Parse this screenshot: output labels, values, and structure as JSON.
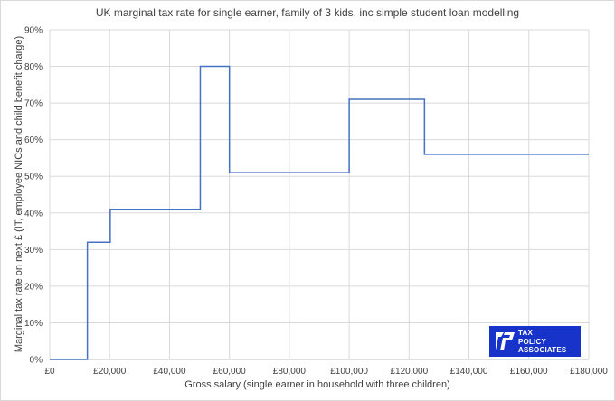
{
  "chart_data": {
    "type": "line",
    "title": "UK marginal tax rate for single earner, family of 3 kids, inc simple student loan modelling",
    "xlabel": "Gross salary (single earner in household with three children)",
    "ylabel": "Marginal tax rate on next £ (IT, employee NICs and child benefit charge)",
    "xlim": [
      0,
      180000
    ],
    "ylim": [
      0,
      90
    ],
    "x_ticks": [
      0,
      20000,
      40000,
      60000,
      80000,
      100000,
      120000,
      140000,
      160000,
      180000
    ],
    "x_tick_labels": [
      "£0",
      "£20,000",
      "£40,000",
      "£60,000",
      "£80,000",
      "£100,000",
      "£120,000",
      "£140,000",
      "£160,000",
      "£180,000"
    ],
    "y_ticks": [
      0,
      10,
      20,
      30,
      40,
      50,
      60,
      70,
      80,
      90
    ],
    "y_tick_labels": [
      "0%",
      "10%",
      "20%",
      "30%",
      "40%",
      "50%",
      "60%",
      "70%",
      "80%",
      "90%"
    ],
    "grid": true,
    "color": "#4472c4",
    "series": [
      {
        "x": [
          0,
          12570,
          12570,
          20200,
          20200,
          50270,
          50270,
          60000,
          60000,
          100000,
          100000,
          125140,
          125140,
          180000
        ],
        "y": [
          0,
          0,
          32,
          32,
          41,
          41,
          80,
          80,
          51,
          51,
          71,
          71,
          56,
          56
        ]
      }
    ]
  },
  "logo": {
    "lines": [
      "TAX",
      "POLICY",
      "ASSOCIATES"
    ],
    "color": "#1733c9"
  }
}
